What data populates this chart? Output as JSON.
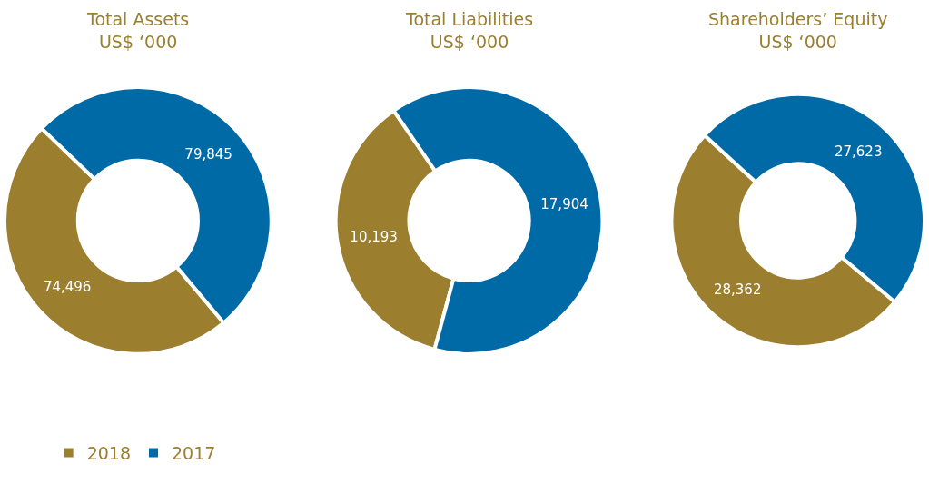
{
  "chart_data": [
    {
      "type": "donut",
      "title": "Total Assets",
      "subtitle": "US$ ‘000",
      "categories": [
        "2018",
        "2017"
      ],
      "values": [
        74496,
        79845
      ],
      "value_labels": [
        "74,496",
        "79,845"
      ],
      "colors": [
        "#9b7f2f",
        "#006aa6"
      ],
      "legend": "bottom left"
    },
    {
      "type": "donut",
      "title": "Total Liabilities",
      "subtitle": "US$ ‘000",
      "categories": [
        null,
        null
      ],
      "values": [
        10193,
        17904
      ],
      "value_labels": [
        "10,193",
        "17,904"
      ],
      "colors": [
        "#9b7f2f",
        "#006aa6"
      ]
    },
    {
      "type": "donut",
      "title": "Shareholders’ Equity",
      "subtitle": "US$ ‘000",
      "categories": [
        null,
        null
      ],
      "values": [
        28362,
        27623
      ],
      "value_labels": [
        "28,362",
        "27,623"
      ],
      "colors": [
        "#9b7f2f",
        "#006aa6"
      ]
    }
  ]
}
